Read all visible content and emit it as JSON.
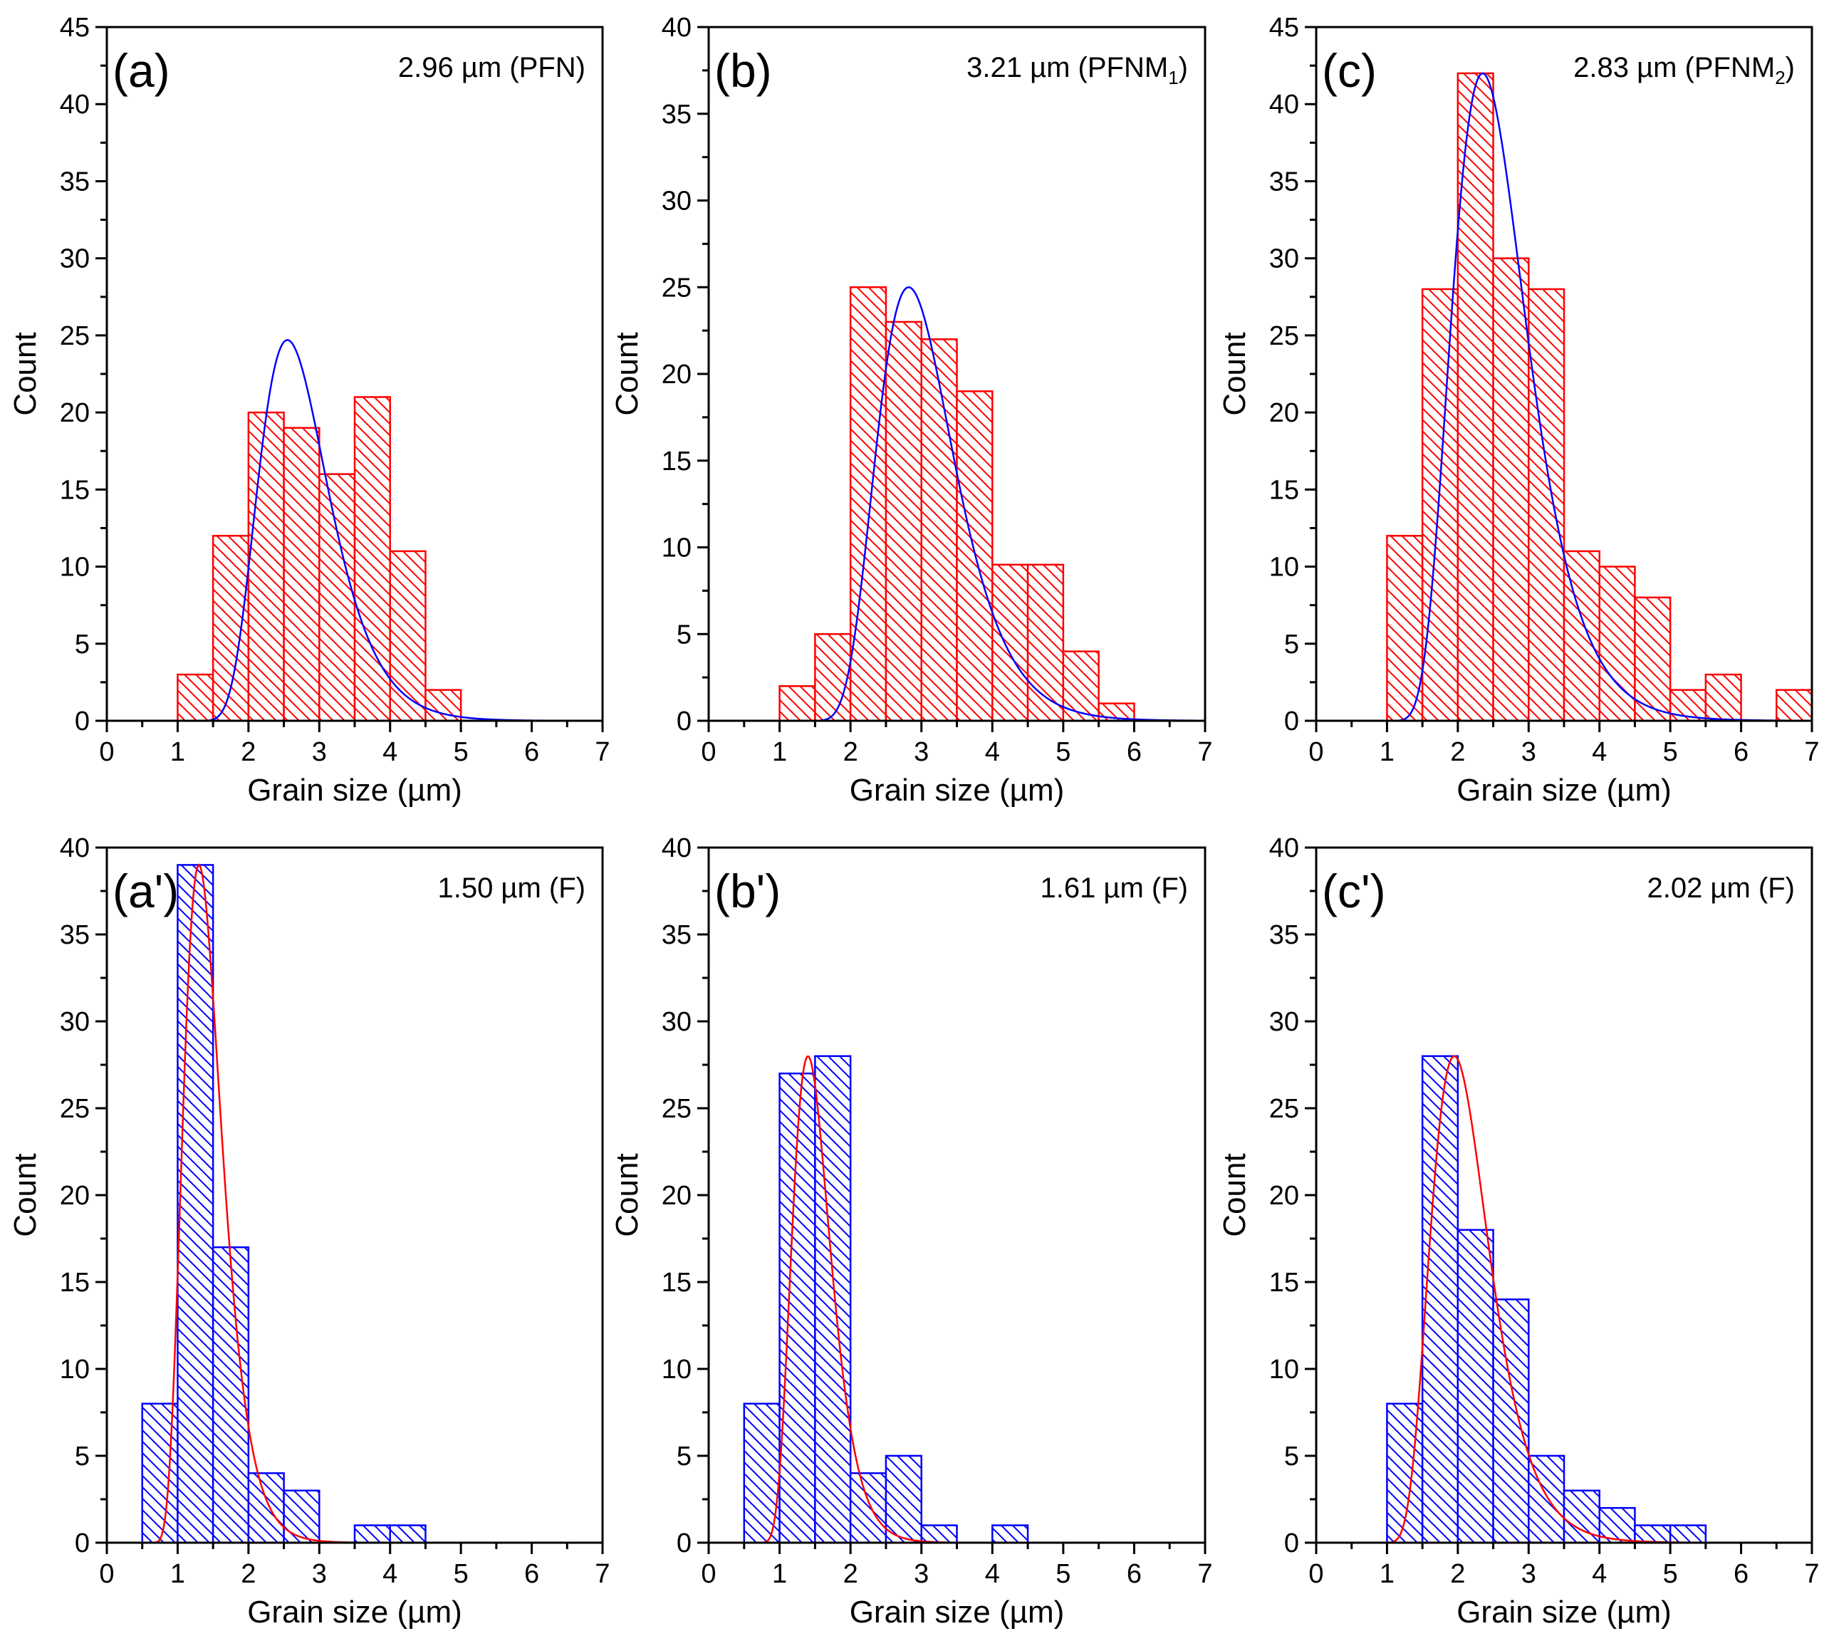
{
  "figure": {
    "axis_labels": {
      "x": "Grain size (µm)",
      "y": "Count"
    }
  },
  "chart_data": [
    {
      "type": "bar",
      "id": "a",
      "panel_label": "(a)",
      "annotation": {
        "main": "2.96 µm (PFN)",
        "sub": ""
      },
      "xlabel": "Grain size (µm)",
      "ylabel": "Count",
      "xlim": [
        0,
        7
      ],
      "ylim": [
        0,
        45
      ],
      "xticks": [
        0,
        1,
        2,
        3,
        4,
        5,
        6,
        7
      ],
      "yticks": [
        0,
        5,
        10,
        15,
        20,
        25,
        30,
        35,
        40,
        45
      ],
      "bins": [
        1.0,
        1.5,
        2.0,
        2.5,
        3.0,
        3.5,
        4.0,
        4.5
      ],
      "values": [
        3,
        12,
        20,
        19,
        16,
        21,
        11,
        2
      ],
      "bin_width": 0.5,
      "fit": {
        "type": "lognormal",
        "x_start": 0.9,
        "mode": 2.55,
        "sigma": 0.3,
        "peak": 24.7
      },
      "colors": {
        "bars": "#ff0000",
        "fit": "#0000ff"
      }
    },
    {
      "type": "bar",
      "id": "b",
      "panel_label": "(b)",
      "annotation": {
        "main": "3.21 µm (PFNM",
        "sub": "1",
        "tail": ")"
      },
      "xlabel": "Grain size (µm)",
      "ylabel": "Count",
      "xlim": [
        0,
        7
      ],
      "ylim": [
        0,
        40
      ],
      "xticks": [
        0,
        1,
        2,
        3,
        4,
        5,
        6,
        7
      ],
      "yticks": [
        0,
        5,
        10,
        15,
        20,
        25,
        30,
        35,
        40
      ],
      "bins": [
        1.0,
        1.5,
        2.0,
        2.5,
        3.0,
        3.5,
        4.0,
        4.5,
        5.0,
        5.5
      ],
      "values": [
        2,
        5,
        25,
        23,
        22,
        19,
        9,
        9,
        4,
        1
      ],
      "bin_width": 0.5,
      "fit": {
        "type": "lognormal",
        "x_start": 1.0,
        "mode": 2.82,
        "sigma": 0.3,
        "peak": 25.0
      },
      "colors": {
        "bars": "#ff0000",
        "fit": "#0000ff"
      }
    },
    {
      "type": "bar",
      "id": "c",
      "panel_label": "(c)",
      "annotation": {
        "main": "2.83 µm (PFNM",
        "sub": "2",
        "tail": ")"
      },
      "xlabel": "Grain size (µm)",
      "ylabel": "Count",
      "xlim": [
        0,
        7
      ],
      "ylim": [
        0,
        45
      ],
      "xticks": [
        0,
        1,
        2,
        3,
        4,
        5,
        6,
        7
      ],
      "yticks": [
        0,
        5,
        10,
        15,
        20,
        25,
        30,
        35,
        40,
        45
      ],
      "bins": [
        1.0,
        1.5,
        2.0,
        2.5,
        3.0,
        3.5,
        4.0,
        4.5,
        5.0,
        5.5,
        6.0,
        6.5
      ],
      "values": [
        12,
        28,
        42,
        30,
        28,
        11,
        10,
        8,
        2,
        3,
        0,
        2
      ],
      "bin_width": 0.5,
      "fit": {
        "type": "lognormal",
        "x_start": 0.7,
        "mode": 2.35,
        "sigma": 0.32,
        "peak": 42.0
      },
      "colors": {
        "bars": "#ff0000",
        "fit": "#0000ff"
      }
    },
    {
      "type": "bar",
      "id": "a-prime",
      "panel_label": "(a')",
      "annotation": {
        "main": "1.50 µm (F)",
        "sub": ""
      },
      "xlabel": "Grain size (µm)",
      "ylabel": "Count",
      "xlim": [
        0,
        7
      ],
      "ylim": [
        0,
        40
      ],
      "xticks": [
        0,
        1,
        2,
        3,
        4,
        5,
        6,
        7
      ],
      "yticks": [
        0,
        5,
        10,
        15,
        20,
        25,
        30,
        35,
        40
      ],
      "bins": [
        0.5,
        1.0,
        1.5,
        2.0,
        2.5,
        3.0,
        3.5,
        4.0
      ],
      "values": [
        8,
        39,
        17,
        4,
        3,
        0,
        1,
        1
      ],
      "bin_width": 0.5,
      "fit": {
        "type": "lognormal",
        "x_start": 0.45,
        "mode": 1.3,
        "sigma": 0.32,
        "peak": 39.0
      },
      "colors": {
        "bars": "#0000ff",
        "fit": "#ff0000"
      }
    },
    {
      "type": "bar",
      "id": "b-prime",
      "panel_label": "(b')",
      "annotation": {
        "main": "1.61 µm (F)",
        "sub": ""
      },
      "xlabel": "Grain size (µm)",
      "ylabel": "Count",
      "xlim": [
        0,
        7
      ],
      "ylim": [
        0,
        40
      ],
      "xticks": [
        0,
        1,
        2,
        3,
        4,
        5,
        6,
        7
      ],
      "yticks": [
        0,
        5,
        10,
        15,
        20,
        25,
        30,
        35,
        40
      ],
      "bins": [
        0.5,
        1.0,
        1.5,
        2.0,
        2.5,
        3.0,
        3.5,
        4.0
      ],
      "values": [
        8,
        27,
        28,
        4,
        5,
        1,
        0,
        1
      ],
      "bin_width": 0.5,
      "fit": {
        "type": "lognormal",
        "x_start": 0.5,
        "mode": 1.4,
        "sigma": 0.3,
        "peak": 28.0
      },
      "colors": {
        "bars": "#0000ff",
        "fit": "#ff0000"
      }
    },
    {
      "type": "bar",
      "id": "c-prime",
      "panel_label": "(c')",
      "annotation": {
        "main": "2.02 µm (F)",
        "sub": ""
      },
      "xlabel": "Grain size (µm)",
      "ylabel": "Count",
      "xlim": [
        0,
        7
      ],
      "ylim": [
        0,
        40
      ],
      "xticks": [
        0,
        1,
        2,
        3,
        4,
        5,
        6,
        7
      ],
      "yticks": [
        0,
        5,
        10,
        15,
        20,
        25,
        30,
        35,
        40
      ],
      "bins": [
        1.0,
        1.5,
        2.0,
        2.5,
        3.0,
        3.5,
        4.0,
        4.5,
        5.0
      ],
      "values": [
        8,
        28,
        18,
        14,
        5,
        3,
        2,
        1,
        1
      ],
      "bin_width": 0.5,
      "fit": {
        "type": "lognormal",
        "x_start": 0.7,
        "mode": 1.95,
        "sigma": 0.33,
        "peak": 28.0
      },
      "colors": {
        "bars": "#0000ff",
        "fit": "#ff0000"
      }
    }
  ]
}
